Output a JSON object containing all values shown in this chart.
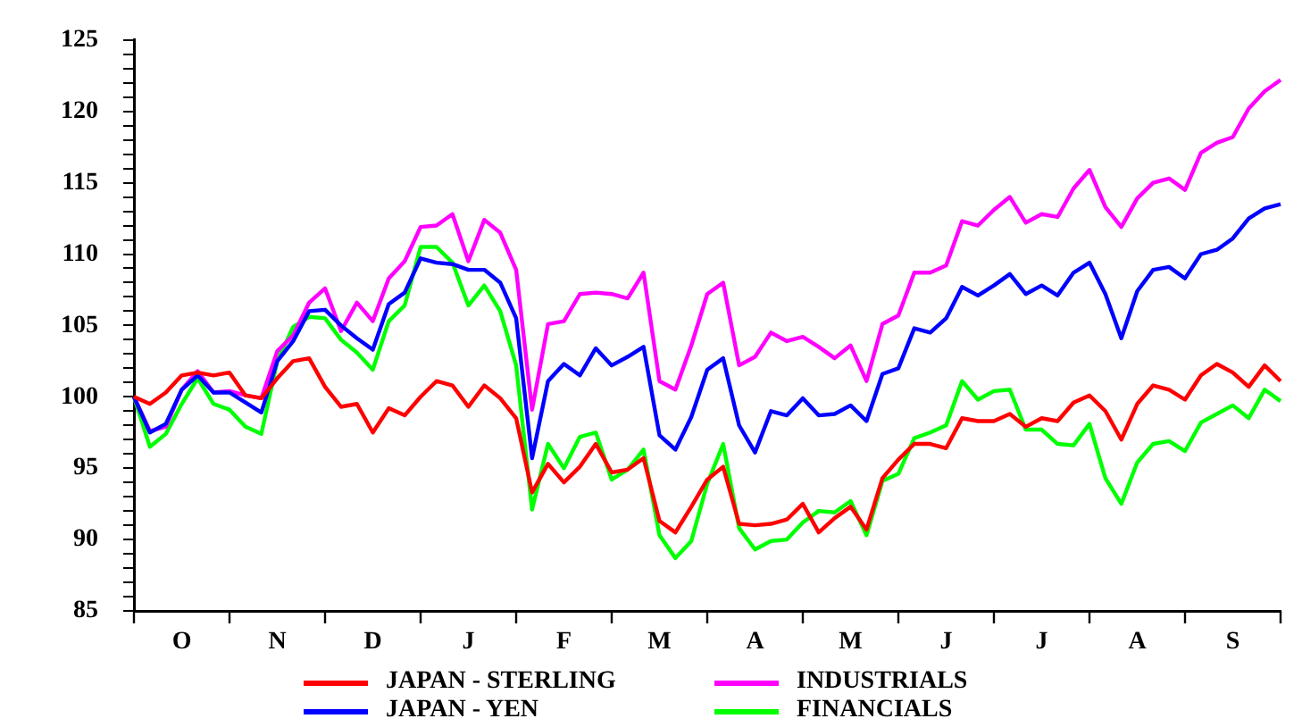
{
  "chart_data": {
    "type": "line",
    "categories": [
      null,
      null,
      null,
      "O",
      null,
      null,
      null,
      null,
      null,
      "N",
      null,
      null,
      null,
      null,
      null,
      "D",
      null,
      null,
      null,
      null,
      null,
      "J",
      null,
      null,
      null,
      null,
      null,
      "F",
      null,
      null,
      null,
      null,
      null,
      "M",
      null,
      null,
      null,
      null,
      null,
      "A",
      null,
      null,
      null,
      null,
      null,
      "M",
      null,
      null,
      null,
      null,
      null,
      "J",
      null,
      null,
      null,
      null,
      null,
      "J",
      null,
      null,
      null,
      null,
      null,
      "A",
      null,
      null,
      null,
      null,
      null,
      "S",
      null,
      null,
      null
    ],
    "ylim": [
      85,
      125
    ],
    "yticks": [
      85,
      {
        "value": 86,
        "label": null
      },
      {
        "value": 87,
        "label": null
      },
      {
        "value": 88,
        "label": null
      },
      {
        "value": 89,
        "label": null
      },
      90,
      {
        "value": 91,
        "label": null
      },
      {
        "value": 92,
        "label": null
      },
      {
        "value": 93,
        "label": null
      },
      {
        "value": 94,
        "label": null
      },
      95,
      {
        "value": 96,
        "label": null
      },
      {
        "value": 97,
        "label": null
      },
      {
        "value": 98,
        "label": null
      },
      {
        "value": 99,
        "label": null
      },
      100,
      {
        "value": 101,
        "label": null
      },
      {
        "value": 102,
        "label": null
      },
      {
        "value": 103,
        "label": null
      },
      {
        "value": 104,
        "label": null
      },
      105,
      {
        "value": 106,
        "label": null
      },
      {
        "value": 107,
        "label": null
      },
      {
        "value": 108,
        "label": null
      },
      {
        "value": 109,
        "label": null
      },
      110,
      {
        "value": 111,
        "label": null
      },
      {
        "value": 112,
        "label": null
      },
      {
        "value": 113,
        "label": null
      },
      {
        "value": 114,
        "label": null
      },
      115,
      {
        "value": 116,
        "label": null
      },
      {
        "value": 117,
        "label": null
      },
      {
        "value": 118,
        "label": null
      },
      {
        "value": 119,
        "label": null
      },
      120,
      {
        "value": 121,
        "label": null
      },
      {
        "value": 122,
        "label": null
      },
      {
        "value": 123,
        "label": null
      },
      {
        "value": 124,
        "label": null
      },
      125
    ],
    "grid": false,
    "legend": "bottom",
    "marker": "none",
    "line_style": "solid",
    "series": [
      {
        "name": "JAPAN - STERLING",
        "color": "#ff0000",
        "values": [
          100,
          99.5,
          100.3,
          101.5,
          101.7,
          101.5,
          101.7,
          100.1,
          99.9,
          101.3,
          102.5,
          102.7,
          100.7,
          99.3,
          99.5,
          97.5,
          99.2,
          98.7,
          100,
          101.1,
          100.8,
          99.3,
          100.8,
          99.9,
          98.5,
          93.3,
          95.3,
          94,
          95.1,
          96.7,
          94.7,
          94.9,
          95.7,
          91.3,
          90.5,
          92.3,
          94.2,
          95.1,
          91.1,
          91,
          91.1,
          91.4,
          92.5,
          90.5,
          91.5,
          92.3,
          90.7,
          94.3,
          95.6,
          96.7,
          96.7,
          96.4,
          98.5,
          98.3,
          98.3,
          98.8,
          97.9,
          98.5,
          98.3,
          99.6,
          100.1,
          99,
          97,
          99.5,
          100.8,
          100.5,
          99.8,
          101.5,
          102.3,
          101.7,
          100.7,
          102.2,
          101.1
        ]
      },
      {
        "name": "JAPAN - YEN",
        "color": "#0000ff",
        "values": [
          100,
          97.5,
          98.1,
          100.5,
          101.5,
          100.3,
          100.3,
          99.6,
          98.9,
          102.5,
          103.9,
          106,
          106.1,
          105,
          104.1,
          103.3,
          106.5,
          107.3,
          109.7,
          109.4,
          109.3,
          108.9,
          108.9,
          108,
          105.5,
          95.7,
          101.1,
          102.3,
          101.5,
          103.4,
          102.2,
          102.8,
          103.5,
          97.3,
          96.3,
          98.6,
          101.9,
          102.7,
          98,
          96.1,
          99,
          98.7,
          99.9,
          98.7,
          98.8,
          99.4,
          98.3,
          101.6,
          102,
          104.8,
          104.5,
          105.5,
          107.7,
          107.1,
          107.8,
          108.6,
          107.2,
          107.8,
          107.1,
          108.7,
          109.4,
          107.2,
          104.1,
          107.4,
          108.9,
          109.1,
          108.3,
          110,
          110.3,
          111.1,
          112.5,
          113.2,
          113.5
        ]
      },
      {
        "name": "INDUSTRIALS",
        "color": "#ff00ff",
        "values": [
          100,
          97.6,
          97.9,
          100.5,
          101.8,
          100.3,
          100.4,
          100.1,
          99.9,
          103.2,
          104.3,
          106.6,
          107.6,
          104.6,
          106.6,
          105.3,
          108.3,
          109.5,
          111.9,
          112,
          112.8,
          109.5,
          112.4,
          111.5,
          108.9,
          99.1,
          105.1,
          105.3,
          107.2,
          107.3,
          107.2,
          106.9,
          108.7,
          101.1,
          100.5,
          103.6,
          107.2,
          108,
          102.2,
          102.8,
          104.5,
          103.9,
          104.2,
          103.5,
          102.7,
          103.6,
          101.1,
          105.1,
          105.7,
          108.7,
          108.7,
          109.2,
          112.3,
          112,
          113.1,
          114,
          112.2,
          112.8,
          112.6,
          114.6,
          115.9,
          113.3,
          111.9,
          113.9,
          115,
          115.3,
          114.5,
          117.1,
          117.8,
          118.2,
          120.2,
          121.4,
          122.2
        ]
      },
      {
        "name": "FINANCIALS",
        "color": "#00ff00",
        "values": [
          100,
          96.5,
          97.4,
          99.5,
          101.3,
          99.5,
          99.1,
          97.9,
          97.4,
          102.5,
          104.9,
          105.6,
          105.5,
          104,
          103.1,
          101.9,
          105.3,
          106.4,
          110.5,
          110.5,
          109.4,
          106.4,
          107.8,
          106,
          102.2,
          92.1,
          96.7,
          95,
          97.2,
          97.5,
          94.2,
          94.9,
          96.3,
          90.3,
          88.7,
          89.9,
          93.9,
          96.7,
          90.8,
          89.3,
          89.9,
          90,
          91.2,
          92,
          91.9,
          92.7,
          90.3,
          94.1,
          94.6,
          97.1,
          97.5,
          98,
          101.1,
          99.8,
          100.4,
          100.5,
          97.7,
          97.7,
          96.7,
          96.6,
          98.1,
          94.3,
          92.5,
          95.4,
          96.7,
          96.9,
          96.2,
          98.2,
          98.8,
          99.4,
          98.5,
          100.5,
          99.7
        ]
      }
    ]
  }
}
